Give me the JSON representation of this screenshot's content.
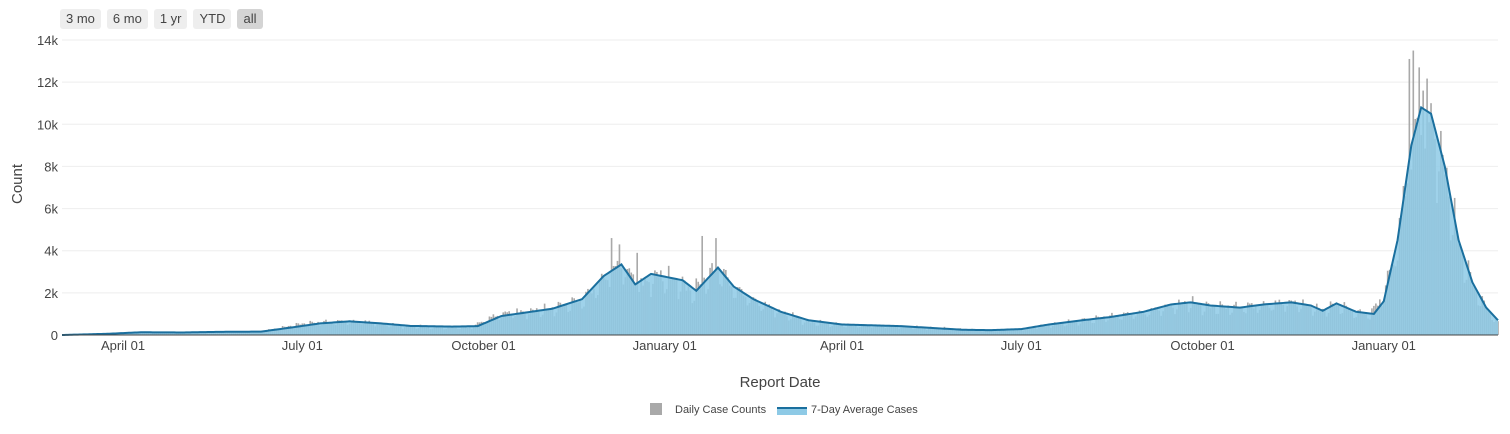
{
  "range_selector": {
    "buttons": [
      "3 mo",
      "6 mo",
      "1 yr",
      "YTD",
      "all"
    ],
    "active": "all"
  },
  "colors": {
    "daily_bar": "#a9a9a9",
    "avg_fill": "#8ecae6",
    "avg_line": "#1a6f9e",
    "grid": "#eeeeee",
    "axis": "#444444"
  },
  "chart_data": {
    "type": "bar",
    "xlabel": "Report Date",
    "ylabel": "Count",
    "x_range": [
      "2020-03-01",
      "2022-02-28"
    ],
    "ylim": [
      0,
      14000
    ],
    "y_ticks": [
      0,
      2000,
      4000,
      6000,
      8000,
      10000,
      12000,
      14000
    ],
    "y_tick_labels": [
      "0",
      "2k",
      "4k",
      "6k",
      "8k",
      "10k",
      "12k",
      "14k"
    ],
    "x_ticks": [
      "2020-04-01",
      "2020-07-01",
      "2020-10-01",
      "2021-01-01",
      "2021-04-01",
      "2021-07-01",
      "2021-10-01",
      "2022-01-01"
    ],
    "x_tick_labels": [
      "April 01",
      "July 01",
      "October 01",
      "January 01",
      "April 01",
      "July 01",
      "October 01",
      "January 01"
    ],
    "grid": true,
    "legend_position": "bottom-center",
    "series": [
      {
        "name": "Daily Case Counts",
        "type": "bar",
        "note_source_points": "key points, daily values interpolated with weekly variation",
        "points": [
          [
            "2020-03-01",
            0
          ],
          [
            "2020-03-20",
            50
          ],
          [
            "2020-04-10",
            150
          ],
          [
            "2020-05-01",
            120
          ],
          [
            "2020-05-20",
            150
          ],
          [
            "2020-06-10",
            170
          ],
          [
            "2020-06-20",
            350
          ],
          [
            "2020-07-01",
            550
          ],
          [
            "2020-07-15",
            650
          ],
          [
            "2020-08-01",
            650
          ],
          [
            "2020-08-20",
            450
          ],
          [
            "2020-09-10",
            380
          ],
          [
            "2020-09-25",
            380
          ],
          [
            "2020-10-01",
            700
          ],
          [
            "2020-10-10",
            1050
          ],
          [
            "2020-10-25",
            1150
          ],
          [
            "2020-11-05",
            1300
          ],
          [
            "2020-11-20",
            1700
          ],
          [
            "2020-12-01",
            2700
          ],
          [
            "2020-12-10",
            3400
          ],
          [
            "2020-12-20",
            2400
          ],
          [
            "2020-12-28",
            2900
          ],
          [
            "2021-01-08",
            2600
          ],
          [
            "2021-01-15",
            2100
          ],
          [
            "2021-01-28",
            3300
          ],
          [
            "2021-02-05",
            2300
          ],
          [
            "2021-02-15",
            1700
          ],
          [
            "2021-03-01",
            1100
          ],
          [
            "2021-03-15",
            650
          ],
          [
            "2021-04-01",
            500
          ],
          [
            "2021-05-01",
            420
          ],
          [
            "2021-06-01",
            280
          ],
          [
            "2021-06-15",
            220
          ],
          [
            "2021-07-01",
            280
          ],
          [
            "2021-07-15",
            500
          ],
          [
            "2021-08-01",
            700
          ],
          [
            "2021-08-15",
            900
          ],
          [
            "2021-09-01",
            1100
          ],
          [
            "2021-09-15",
            1400
          ],
          [
            "2021-09-25",
            1600
          ],
          [
            "2021-10-01",
            1400
          ],
          [
            "2021-10-15",
            1350
          ],
          [
            "2021-11-01",
            1450
          ],
          [
            "2021-11-15",
            1600
          ],
          [
            "2021-11-25",
            1400
          ],
          [
            "2021-12-01",
            1200
          ],
          [
            "2021-12-08",
            1500
          ],
          [
            "2021-12-18",
            1100
          ],
          [
            "2021-12-25",
            1000
          ],
          [
            "2022-01-01",
            2000
          ],
          [
            "2022-01-08",
            4500
          ],
          [
            "2022-01-15",
            9000
          ],
          [
            "2022-01-20",
            11000
          ],
          [
            "2022-01-25",
            10500
          ],
          [
            "2022-02-01",
            8000
          ],
          [
            "2022-02-08",
            4500
          ],
          [
            "2022-02-15",
            2500
          ],
          [
            "2022-02-22",
            1300
          ],
          [
            "2022-02-28",
            600
          ]
        ],
        "spikes": [
          [
            "2020-12-05",
            4600
          ],
          [
            "2020-12-09",
            4300
          ],
          [
            "2020-12-18",
            3900
          ],
          [
            "2021-01-20",
            4700
          ],
          [
            "2021-01-27",
            4600
          ],
          [
            "2022-01-14",
            13100
          ],
          [
            "2022-01-16",
            13500
          ],
          [
            "2022-01-19",
            12700
          ],
          [
            "2022-01-21",
            11600
          ]
        ]
      },
      {
        "name": "7-Day Average Cases",
        "type": "area",
        "points": [
          [
            "2020-03-01",
            0
          ],
          [
            "2020-03-25",
            60
          ],
          [
            "2020-04-10",
            130
          ],
          [
            "2020-05-01",
            120
          ],
          [
            "2020-05-20",
            150
          ],
          [
            "2020-06-10",
            160
          ],
          [
            "2020-06-25",
            350
          ],
          [
            "2020-07-10",
            550
          ],
          [
            "2020-07-25",
            650
          ],
          [
            "2020-08-10",
            550
          ],
          [
            "2020-08-25",
            430
          ],
          [
            "2020-09-15",
            400
          ],
          [
            "2020-09-28",
            420
          ],
          [
            "2020-10-10",
            900
          ],
          [
            "2020-10-25",
            1100
          ],
          [
            "2020-11-05",
            1250
          ],
          [
            "2020-11-20",
            1700
          ],
          [
            "2020-12-01",
            2800
          ],
          [
            "2020-12-10",
            3350
          ],
          [
            "2020-12-17",
            2400
          ],
          [
            "2020-12-25",
            2900
          ],
          [
            "2021-01-10",
            2600
          ],
          [
            "2021-01-17",
            2100
          ],
          [
            "2021-01-28",
            3200
          ],
          [
            "2021-02-05",
            2300
          ],
          [
            "2021-02-15",
            1700
          ],
          [
            "2021-03-01",
            1100
          ],
          [
            "2021-03-15",
            700
          ],
          [
            "2021-04-01",
            500
          ],
          [
            "2021-05-01",
            420
          ],
          [
            "2021-06-01",
            250
          ],
          [
            "2021-06-15",
            230
          ],
          [
            "2021-07-01",
            280
          ],
          [
            "2021-07-15",
            500
          ],
          [
            "2021-08-01",
            700
          ],
          [
            "2021-08-15",
            850
          ],
          [
            "2021-09-01",
            1100
          ],
          [
            "2021-09-15",
            1450
          ],
          [
            "2021-09-25",
            1550
          ],
          [
            "2021-10-05",
            1400
          ],
          [
            "2021-10-20",
            1300
          ],
          [
            "2021-11-01",
            1450
          ],
          [
            "2021-11-15",
            1550
          ],
          [
            "2021-11-25",
            1400
          ],
          [
            "2021-12-01",
            1150
          ],
          [
            "2021-12-08",
            1500
          ],
          [
            "2021-12-18",
            1100
          ],
          [
            "2021-12-27",
            1000
          ],
          [
            "2022-01-01",
            1600
          ],
          [
            "2022-01-08",
            4500
          ],
          [
            "2022-01-15",
            9000
          ],
          [
            "2022-01-20",
            10800
          ],
          [
            "2022-01-25",
            10500
          ],
          [
            "2022-02-01",
            8000
          ],
          [
            "2022-02-08",
            4500
          ],
          [
            "2022-02-15",
            2500
          ],
          [
            "2022-02-22",
            1300
          ],
          [
            "2022-02-28",
            700
          ]
        ]
      }
    ]
  }
}
